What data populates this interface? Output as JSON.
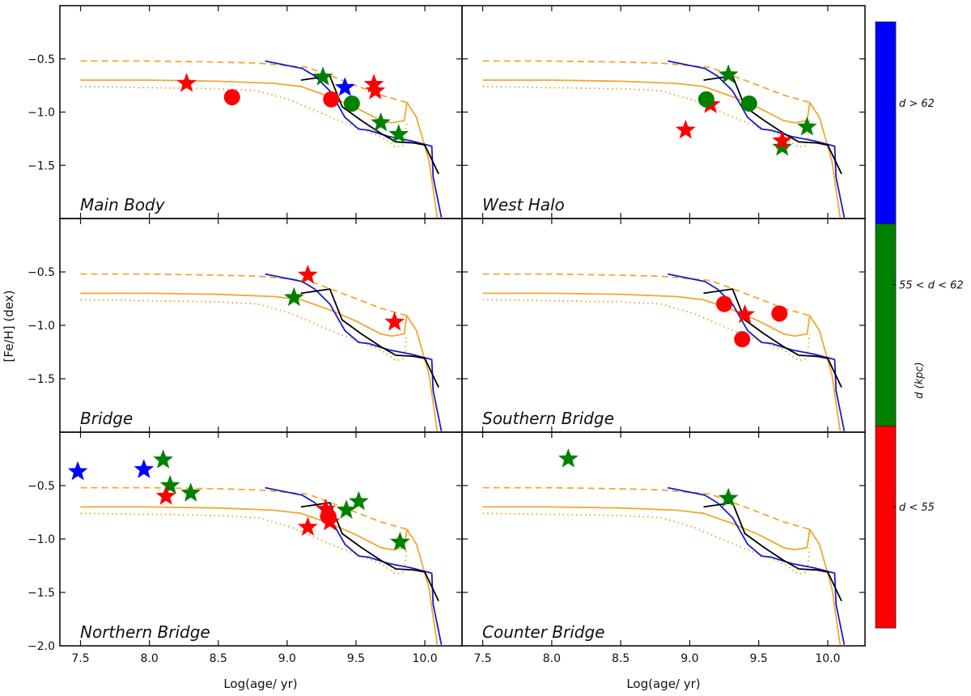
{
  "chart_data": {
    "type": "line",
    "figure_description": "Age-metallicity relation panels with model tracks and cluster points colored by distance",
    "xlabel": "Log(age/ yr)",
    "ylabel": "[Fe/H] (dex)",
    "xlim": [
      7.35,
      10.27
    ],
    "ylim": [
      -2.0,
      0.0
    ],
    "xticks": [
      7.5,
      8.0,
      8.5,
      9.0,
      9.5,
      10.0
    ],
    "xtick_labels": [
      "7.5",
      "8.0",
      "8.5",
      "9.0",
      "9.5",
      "10.0"
    ],
    "yticks": [
      -0.5,
      -1.0,
      -1.5,
      -2.0
    ],
    "ytick_labels": [
      "−0.5",
      "−1.0",
      "−1.5",
      "−2.0"
    ],
    "grid": false,
    "layout": "3 rows x 2 columns, shared axes",
    "colorbar": {
      "title": "d (kpc)",
      "segments": [
        {
          "label": "d > 62",
          "color": "#0000ff"
        },
        {
          "label": "55 < d < 62",
          "color": "#008000"
        },
        {
          "label": "d < 55",
          "color": "#ff0000"
        }
      ]
    },
    "distance_colors": {
      "far": "#0000ff",
      "mid": "#008000",
      "near": "#ff0000"
    },
    "model_curves": [
      {
        "name": "model-solid-orange",
        "color": "#f0a830",
        "style": "solid",
        "x": [
          7.5,
          8.0,
          8.5,
          8.9,
          9.1,
          9.32,
          9.5,
          9.68,
          9.76,
          9.85,
          9.87,
          9.94,
          10.03,
          10.09
        ],
        "y": [
          -0.7,
          -0.7,
          -0.71,
          -0.73,
          -0.76,
          -0.86,
          -0.96,
          -1.08,
          -1.1,
          -1.08,
          -0.91,
          -1.05,
          -1.46,
          -1.99
        ]
      },
      {
        "name": "model-dashed-orange",
        "color": "#f0a830",
        "style": "dashed",
        "x": [
          7.5,
          8.0,
          8.5,
          8.79,
          9.15,
          9.44,
          9.68,
          9.87
        ],
        "y": [
          -0.52,
          -0.52,
          -0.53,
          -0.54,
          -0.58,
          -0.72,
          -0.84,
          -0.91
        ]
      },
      {
        "name": "model-dotted-orange",
        "color": "#f0a830",
        "style": "dotted",
        "x": [
          7.5,
          8.0,
          8.5,
          8.79,
          9.03,
          9.32,
          9.5,
          9.68,
          9.79,
          9.85,
          9.87
        ],
        "y": [
          -0.76,
          -0.77,
          -0.78,
          -0.8,
          -0.89,
          -1.05,
          -1.14,
          -1.23,
          -1.33,
          -1.31,
          -1.08
        ]
      },
      {
        "name": "model-blue",
        "color": "#1a1acc",
        "style": "solid",
        "x": [
          8.84,
          9.11,
          9.2,
          9.31,
          9.42,
          9.52,
          9.59,
          9.74,
          9.9,
          10.05,
          10.06,
          10.12
        ],
        "y": [
          -0.52,
          -0.59,
          -0.66,
          -0.8,
          -1.05,
          -1.16,
          -1.17,
          -1.23,
          -1.27,
          -1.32,
          -1.61,
          -1.99
        ]
      },
      {
        "name": "model-black",
        "color": "#000000",
        "style": "solid",
        "x": [
          9.1,
          9.31,
          9.4,
          9.54,
          9.68,
          9.79,
          9.92,
          10.0,
          10.1
        ],
        "y": [
          -0.7,
          -0.66,
          -0.95,
          -1.08,
          -1.2,
          -1.28,
          -1.29,
          -1.31,
          -1.58
        ]
      }
    ],
    "panels": [
      {
        "name": "Main Body",
        "points": [
          {
            "x": 8.27,
            "y": -0.73,
            "marker": "star",
            "color": "near"
          },
          {
            "x": 8.6,
            "y": -0.86,
            "marker": "circle",
            "color": "near"
          },
          {
            "x": 9.26,
            "y": -0.67,
            "marker": "star",
            "color": "mid"
          },
          {
            "x": 9.42,
            "y": -0.77,
            "marker": "star",
            "color": "far"
          },
          {
            "x": 9.63,
            "y": -0.74,
            "marker": "star",
            "color": "near"
          },
          {
            "x": 9.64,
            "y": -0.8,
            "marker": "star",
            "color": "near"
          },
          {
            "x": 9.32,
            "y": -0.88,
            "marker": "circle",
            "color": "near"
          },
          {
            "x": 9.47,
            "y": -0.92,
            "marker": "circle",
            "color": "mid"
          },
          {
            "x": 9.68,
            "y": -1.1,
            "marker": "star",
            "color": "mid"
          },
          {
            "x": 9.81,
            "y": -1.21,
            "marker": "star",
            "color": "mid"
          }
        ]
      },
      {
        "name": "West Halo",
        "points": [
          {
            "x": 9.28,
            "y": -0.65,
            "marker": "star",
            "color": "mid"
          },
          {
            "x": 9.15,
            "y": -0.93,
            "marker": "star",
            "color": "near"
          },
          {
            "x": 9.12,
            "y": -0.88,
            "marker": "circle",
            "color": "mid"
          },
          {
            "x": 9.43,
            "y": -0.92,
            "marker": "circle",
            "color": "mid"
          },
          {
            "x": 8.97,
            "y": -1.17,
            "marker": "star",
            "color": "near"
          },
          {
            "x": 9.67,
            "y": -1.33,
            "marker": "star",
            "color": "mid"
          },
          {
            "x": 9.67,
            "y": -1.27,
            "marker": "star",
            "color": "near"
          },
          {
            "x": 9.85,
            "y": -1.14,
            "marker": "star",
            "color": "mid"
          }
        ]
      },
      {
        "name": "Bridge",
        "points": [
          {
            "x": 9.15,
            "y": -0.53,
            "marker": "star",
            "color": "near"
          },
          {
            "x": 9.05,
            "y": -0.74,
            "marker": "star",
            "color": "mid"
          },
          {
            "x": 9.78,
            "y": -0.97,
            "marker": "star",
            "color": "near"
          }
        ]
      },
      {
        "name": "Southern Bridge",
        "points": [
          {
            "x": 9.25,
            "y": -0.8,
            "marker": "circle",
            "color": "near"
          },
          {
            "x": 9.4,
            "y": -0.9,
            "marker": "star",
            "color": "near"
          },
          {
            "x": 9.38,
            "y": -1.13,
            "marker": "circle",
            "color": "near"
          },
          {
            "x": 9.65,
            "y": -0.89,
            "marker": "circle",
            "color": "near"
          }
        ]
      },
      {
        "name": "Northern Bridge",
        "points": [
          {
            "x": 7.48,
            "y": -0.37,
            "marker": "star",
            "color": "far"
          },
          {
            "x": 7.96,
            "y": -0.35,
            "marker": "star",
            "color": "far"
          },
          {
            "x": 8.1,
            "y": -0.26,
            "marker": "star",
            "color": "mid"
          },
          {
            "x": 8.15,
            "y": -0.5,
            "marker": "star",
            "color": "mid"
          },
          {
            "x": 8.12,
            "y": -0.6,
            "marker": "star",
            "color": "near"
          },
          {
            "x": 8.3,
            "y": -0.57,
            "marker": "star",
            "color": "mid"
          },
          {
            "x": 9.15,
            "y": -0.89,
            "marker": "star",
            "color": "near"
          },
          {
            "x": 9.28,
            "y": -0.72,
            "marker": "star",
            "color": "near"
          },
          {
            "x": 9.3,
            "y": -0.79,
            "marker": "circle",
            "color": "near"
          },
          {
            "x": 9.31,
            "y": -0.84,
            "marker": "star",
            "color": "near"
          },
          {
            "x": 9.43,
            "y": -0.73,
            "marker": "star",
            "color": "mid"
          },
          {
            "x": 9.52,
            "y": -0.65,
            "marker": "star",
            "color": "mid"
          },
          {
            "x": 9.82,
            "y": -1.03,
            "marker": "star",
            "color": "mid"
          }
        ]
      },
      {
        "name": "Counter Bridge",
        "points": [
          {
            "x": 8.12,
            "y": -0.25,
            "marker": "star",
            "color": "mid"
          },
          {
            "x": 9.28,
            "y": -0.62,
            "marker": "star",
            "color": "mid"
          }
        ]
      }
    ]
  }
}
